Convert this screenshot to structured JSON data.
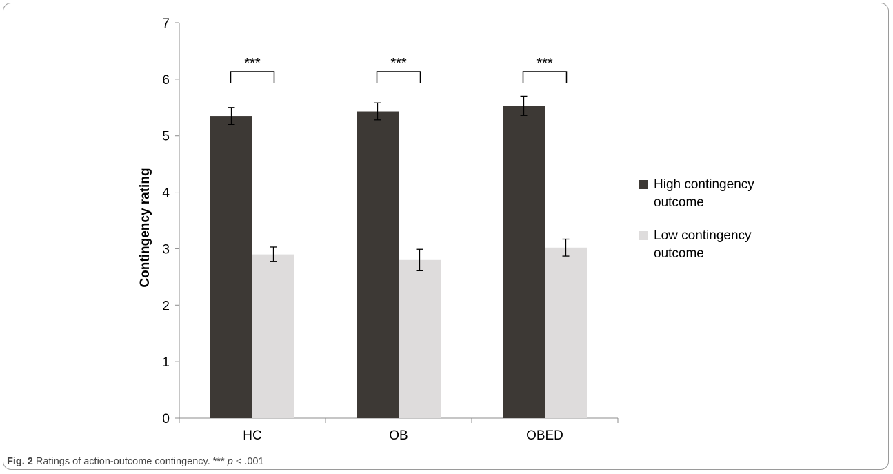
{
  "chart_data": {
    "type": "bar",
    "categories": [
      "HC",
      "OB",
      "OBED"
    ],
    "ylabel": "Contingency rating",
    "xlabel": "",
    "ylim": [
      0,
      7
    ],
    "yticks": [
      "0",
      "1",
      "2",
      "3",
      "4",
      "5",
      "6",
      "7"
    ],
    "grid": false,
    "legend_position": "right",
    "series": [
      {
        "name": "High contingency outcome",
        "color": "#3d3935",
        "values": [
          5.35,
          5.43,
          5.53
        ],
        "errors": [
          0.15,
          0.15,
          0.17
        ]
      },
      {
        "name": "Low contingency outcome",
        "color": "#dedcdc",
        "values": [
          2.9,
          2.8,
          3.02
        ],
        "errors": [
          0.13,
          0.19,
          0.15
        ]
      }
    ],
    "significance": [
      "***",
      "***",
      "***"
    ]
  },
  "legend": {
    "items": [
      {
        "line1": "High contingency",
        "line2": "outcome"
      },
      {
        "line1": "Low contingency",
        "line2": "outcome"
      }
    ]
  },
  "caption": {
    "fig_label": "Fig. 2",
    "text": "Ratings of action-outcome contingency. *** ",
    "p_symbol": "p",
    "p_value": " < .001"
  }
}
